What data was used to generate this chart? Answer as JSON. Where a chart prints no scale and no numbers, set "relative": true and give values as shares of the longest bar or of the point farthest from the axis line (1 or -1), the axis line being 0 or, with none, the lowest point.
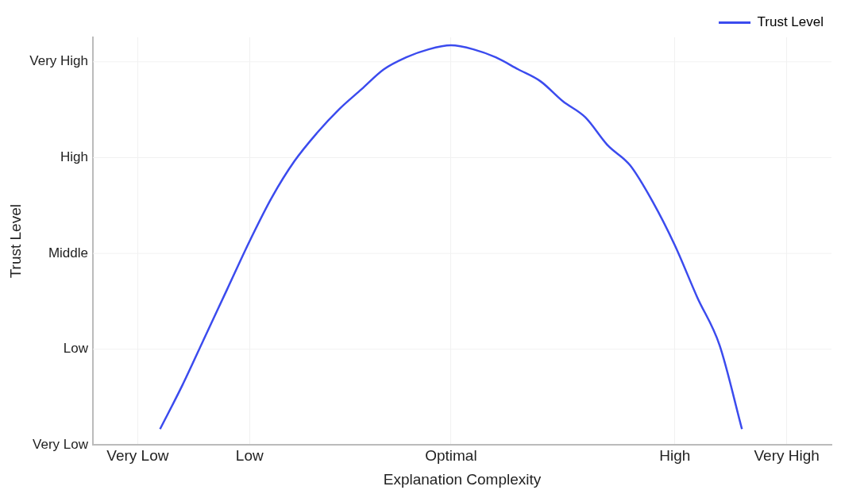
{
  "chart_data": {
    "type": "line",
    "xlabel": "Explanation Complexity",
    "ylabel": "Trust Level",
    "relative": true,
    "categories": [
      null,
      null,
      "Very Low",
      null,
      null,
      null,
      null,
      "Low",
      null,
      null,
      null,
      null,
      null,
      null,
      null,
      null,
      "Optimal",
      null,
      null,
      null,
      null,
      null,
      null,
      null,
      null,
      null,
      "High",
      null,
      null,
      null,
      null,
      "Very High",
      null,
      null
    ],
    "series": [
      {
        "name": "Trust Level",
        "color": "#3b4bee",
        "values": [
          null,
          null,
          null,
          0.04,
          0.15,
          0.27,
          0.39,
          0.51,
          0.62,
          0.71,
          0.78,
          0.84,
          0.89,
          0.94,
          0.97,
          0.99,
          1,
          0.99,
          0.97,
          0.94,
          0.91,
          0.86,
          0.82,
          0.75,
          0.7,
          0.61,
          0.5,
          0.37,
          0.25,
          0.04,
          null,
          null,
          null,
          null
        ]
      }
    ],
    "annotations": [
      "Very Low",
      "Low",
      "Middle",
      "High",
      "Very High"
    ],
    "grid": true,
    "legend": "top right",
    "marker": "none",
    "line_style": "solid"
  }
}
